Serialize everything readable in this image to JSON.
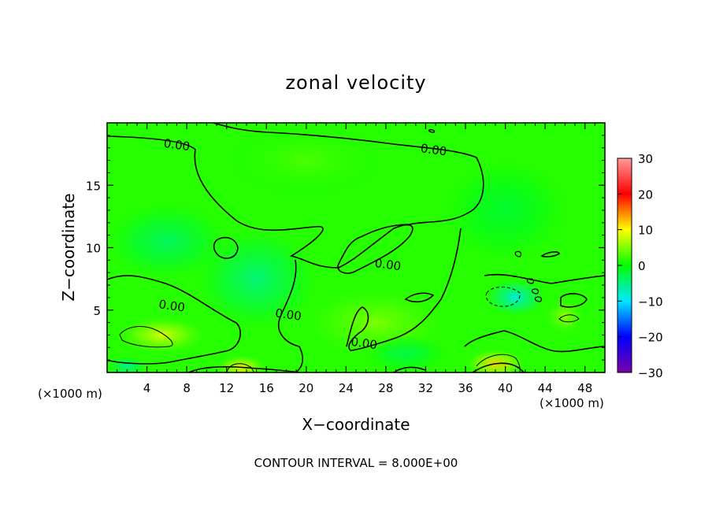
{
  "chart_data": {
    "type": "heatmap",
    "title": "zonal velocity",
    "xlabel": "X−coordinate",
    "ylabel": "Z−coordinate",
    "x_unit_left": "(×1000 m)",
    "x_unit_right": "(×1000 m)",
    "xlim": [
      0,
      50
    ],
    "ylim": [
      0,
      20
    ],
    "x_ticks": [
      {
        "value": 4,
        "label": "4"
      },
      {
        "value": 8,
        "label": "8"
      },
      {
        "value": 12,
        "label": "12"
      },
      {
        "value": 16,
        "label": "16"
      },
      {
        "value": 20,
        "label": "20"
      },
      {
        "value": 24,
        "label": "24"
      },
      {
        "value": 28,
        "label": "28"
      },
      {
        "value": 32,
        "label": "32"
      },
      {
        "value": 36,
        "label": "36"
      },
      {
        "value": 40,
        "label": "40"
      },
      {
        "value": 44,
        "label": "44"
      },
      {
        "value": 48,
        "label": "48"
      }
    ],
    "y_ticks": [
      {
        "value": 5,
        "label": "5"
      },
      {
        "value": 10,
        "label": "10"
      },
      {
        "value": 15,
        "label": "15"
      }
    ],
    "colorbar": {
      "range": [
        -30,
        30
      ],
      "ticks": [
        {
          "value": 30,
          "label": "30"
        },
        {
          "value": 20,
          "label": "20"
        },
        {
          "value": 10,
          "label": "10"
        },
        {
          "value": 0,
          "label": "0"
        },
        {
          "value": -10,
          "label": "−10"
        },
        {
          "value": -20,
          "label": "−20"
        },
        {
          "value": -30,
          "label": "−30"
        }
      ],
      "colors": [
        "#7b00a8",
        "#0000ff",
        "#00e8ff",
        "#00ff00",
        "#ffff00",
        "#ff0000",
        "#ff9a9a"
      ]
    },
    "contour_labels": [
      {
        "x": 7.0,
        "y": 18.2,
        "text": "0.00"
      },
      {
        "x": 32.8,
        "y": 17.8,
        "text": "0.00"
      },
      {
        "x": 28.2,
        "y": 8.6,
        "text": "0.00"
      },
      {
        "x": 6.5,
        "y": 5.3,
        "text": "0.00"
      },
      {
        "x": 18.2,
        "y": 4.6,
        "text": "0.00"
      },
      {
        "x": 25.8,
        "y": 2.3,
        "text": "0.00"
      }
    ],
    "blobs": [
      {
        "x": 5.5,
        "y": 3.0,
        "v": 9,
        "rx": 4.5,
        "ry": 1.5
      },
      {
        "x": 13.5,
        "y": 0.4,
        "v": 11,
        "rx": 2.5,
        "ry": 1.0
      },
      {
        "x": 39.0,
        "y": 0.7,
        "v": 12,
        "rx": 3.0,
        "ry": 1.2
      },
      {
        "x": 41.0,
        "y": 6.0,
        "v": -9,
        "rx": 3.0,
        "ry": 1.5
      },
      {
        "x": 15.0,
        "y": 7.5,
        "v": -5,
        "rx": 6.0,
        "ry": 4.0
      },
      {
        "x": 6.0,
        "y": 10.5,
        "v": -4,
        "rx": 6.0,
        "ry": 3.0
      },
      {
        "x": 27.0,
        "y": 4.0,
        "v": 5,
        "rx": 8.0,
        "ry": 3.0
      },
      {
        "x": 46.0,
        "y": 4.5,
        "v": 6,
        "rx": 2.0,
        "ry": 1.5
      },
      {
        "x": 40.0,
        "y": 13.0,
        "v": -2,
        "rx": 6.0,
        "ry": 4.0
      },
      {
        "x": 20.0,
        "y": 17.0,
        "v": 3,
        "rx": 8.0,
        "ry": 3.0
      },
      {
        "x": 30.0,
        "y": 1.5,
        "v": -3,
        "rx": 4.0,
        "ry": 1.5
      },
      {
        "x": 2.0,
        "y": 0.5,
        "v": -6,
        "rx": 2.0,
        "ry": 0.8
      }
    ],
    "base_value": 1.5,
    "contour_interval_text": "CONTOUR INTERVAL = 8.000E+00"
  }
}
